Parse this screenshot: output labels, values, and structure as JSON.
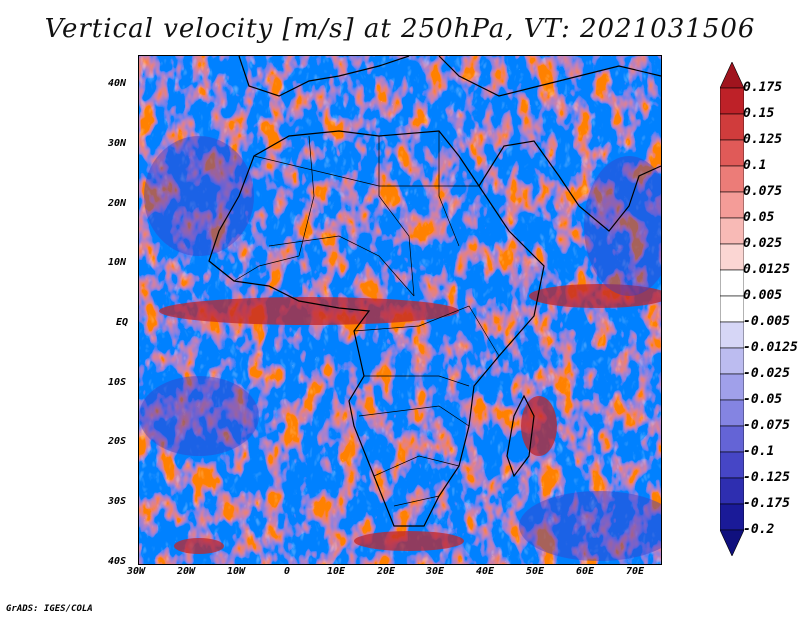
{
  "title": "Vertical velocity [m/s] at 250hPa, VT: 2021031506",
  "credit": "GrADS: IGES/COLA",
  "map": {
    "projection": "lat-lon",
    "lon_range": [
      -30,
      75
    ],
    "lat_range": [
      -40,
      45
    ],
    "lat_ticks": [
      "40N",
      "30N",
      "20N",
      "10N",
      "EQ",
      "10S",
      "20S",
      "30S",
      "40S"
    ],
    "lon_ticks": [
      "30W",
      "20W",
      "10W",
      "0",
      "10E",
      "20E",
      "30E",
      "40E",
      "50E",
      "60E",
      "70E"
    ]
  },
  "colorbar": {
    "labels": [
      "0.175",
      "0.15",
      "0.125",
      "0.1",
      "0.075",
      "0.05",
      "0.025",
      "0.0125",
      "0.005",
      "-0.005",
      "-0.0125",
      "-0.025",
      "-0.05",
      "-0.075",
      "-0.1",
      "-0.125",
      "-0.175",
      "-0.2"
    ],
    "colors": [
      "#a0141e",
      "#be2128",
      "#d03c3c",
      "#e05a58",
      "#ec7c78",
      "#f49c98",
      "#f8bab6",
      "#fbd6d3",
      "#ffffff",
      "#ffffff",
      "#d6d6f6",
      "#bcbcf0",
      "#a0a0ea",
      "#8484e2",
      "#6464d6",
      "#4646c6",
      "#2e2eb0",
      "#1a1a98",
      "#10107e"
    ]
  }
}
